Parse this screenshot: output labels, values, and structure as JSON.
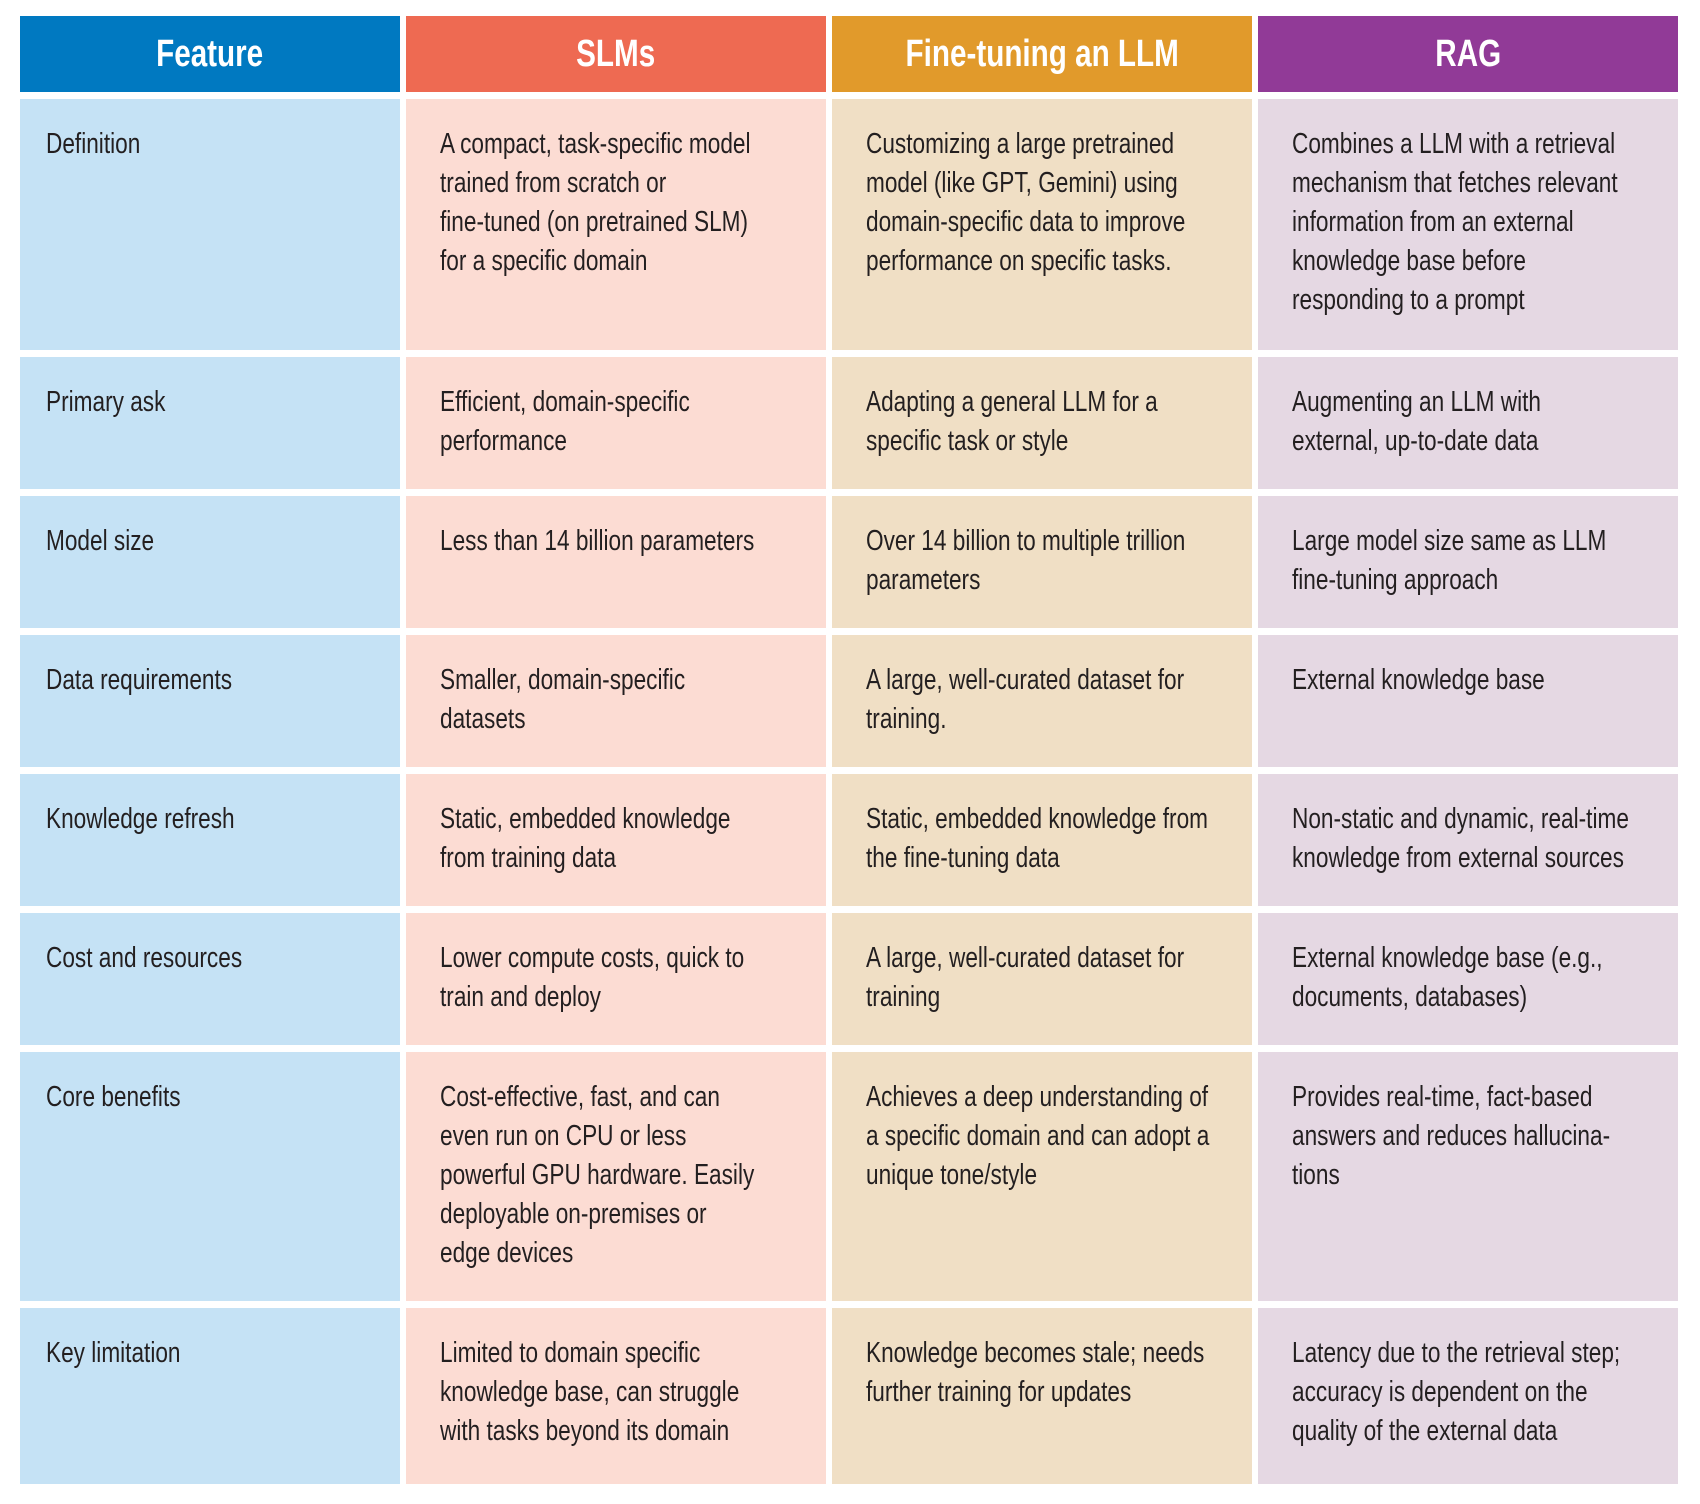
{
  "columns": [
    {
      "label": "Feature",
      "header_color": "#0079C1",
      "cell_color": "#C5E2F5"
    },
    {
      "label": "SLMs",
      "header_color": "#EE6A52",
      "cell_color": "#FCDCD3"
    },
    {
      "label": "Fine-tuning an LLM",
      "header_color": "#E19A2B",
      "cell_color": "#F0DFC5"
    },
    {
      "label": "RAG",
      "header_color": "#913A97",
      "cell_color": "#E5D8E3"
    }
  ],
  "rows": [
    {
      "height": 251,
      "cells": [
        "Definition",
        "A compact, task-specific model\ntrained from scratch or\nfine-tuned (on pretrained SLM)\nfor a specific domain",
        "Customizing a large pretrained\nmodel (like GPT, Gemini) using\ndomain-specific data to improve\nperformance on specific tasks.",
        "Combines a LLM with a retrieval\nmechanism that fetches relevant\ninformation from an external\nknowledge base before\nresponding to a prompt"
      ]
    },
    {
      "height": 132,
      "cells": [
        "Primary ask",
        "Efficient, domain-specific\nperformance",
        "Adapting a general LLM for a\nspecific task or style",
        "Augmenting an LLM with\nexternal, up-to-date data"
      ]
    },
    {
      "height": 132,
      "cells": [
        "Model size",
        "Less than 14 billion parameters",
        "Over 14 billion to multiple trillion\nparameters",
        "Large model size same as LLM\nfine-tuning approach"
      ]
    },
    {
      "height": 132,
      "cells": [
        "Data requirements",
        "Smaller, domain-specific\ndatasets",
        "A large, well-curated dataset for\ntraining.",
        "External knowledge base"
      ]
    },
    {
      "height": 132,
      "cells": [
        "Knowledge refresh",
        "Static, embedded knowledge\nfrom training data",
        "Static, embedded knowledge from\nthe fine-tuning data",
        "Non-static and dynamic, real-time\nknowledge from external sources"
      ]
    },
    {
      "height": 132,
      "cells": [
        "Cost and resources",
        "Lower compute costs, quick to\ntrain and deploy",
        "A large, well-curated dataset for\ntraining",
        "External knowledge base (e.g.,\ndocuments, databases)"
      ]
    },
    {
      "height": 249,
      "cells": [
        "Core benefits",
        "Cost-effective, fast, and can\neven run on CPU or less\npowerful GPU hardware. Easily\ndeployable on-premises or\nedge devices",
        "Achieves a deep understanding of\na specific domain and can adopt a\nunique tone/style",
        "Provides real-time, fact-based\nanswers and reduces hallucina-\ntions"
      ]
    },
    {
      "height": 176,
      "cells": [
        "Key limitation",
        "Limited to domain specific\nknowledge base, can struggle\nwith tasks beyond its domain",
        "Knowledge becomes stale; needs\nfurther training for updates",
        "Latency due to the retrieval step;\naccuracy is dependent on the\nquality of the external data"
      ]
    }
  ]
}
